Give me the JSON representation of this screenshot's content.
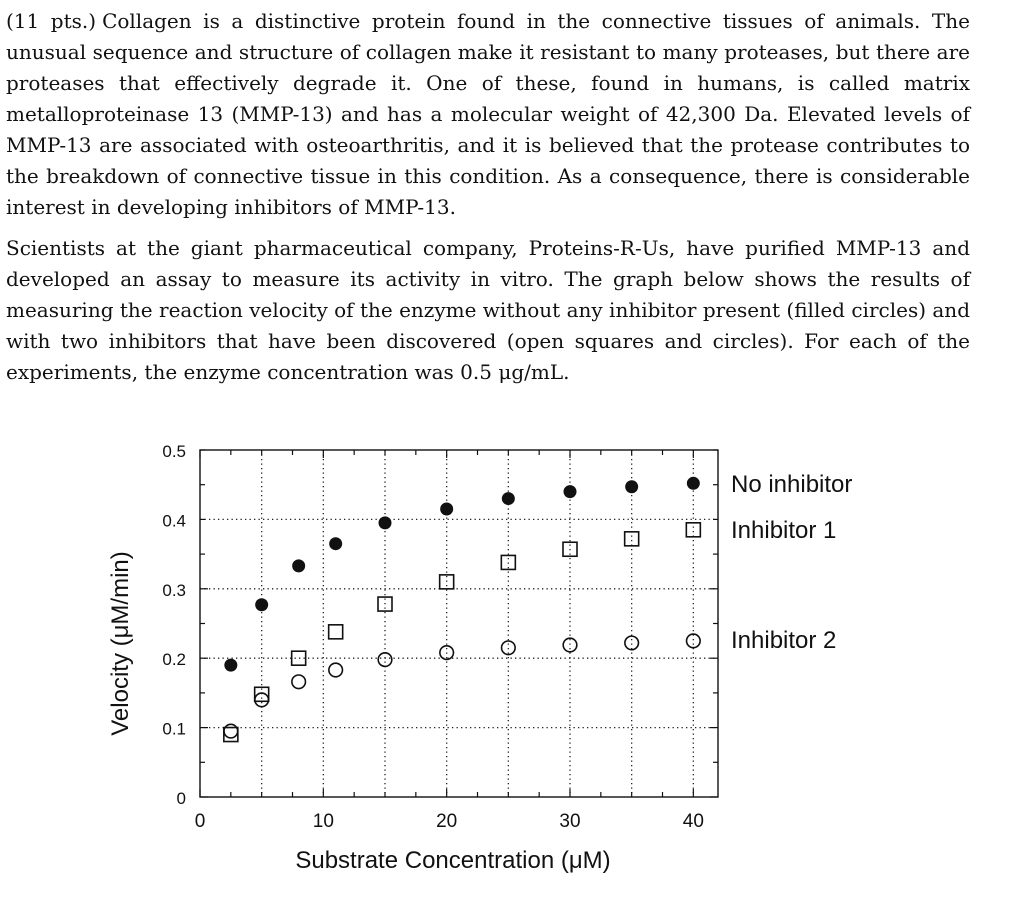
{
  "problem": {
    "points": "(11 pts.)",
    "paragraph1": "Collagen is a distinctive protein found in the connective tissues of animals. The unusual sequence and structure of collagen make it resistant to many proteases, but there are proteases that effectively degrade it. One of these, found in humans, is called matrix metalloproteinase 13 (MMP-13) and has a molecular weight of 42,300 Da. Elevated levels of MMP-13 are associated with osteoarthritis, and it is believed that the protease contributes to the breakdown of connective tissue in this condition. As a consequence, there is considerable interest in developing inhibitors of MMP-13.",
    "paragraph2": "Scientists at the giant pharmaceutical company, Proteins-R-Us, have purified MMP-13 and developed an assay to measure its activity in vitro. The graph below shows the results of measuring the reaction velocity of the enzyme without any inhibitor present (filled circles) and with two inhibitors that have been discovered (open squares and circles). For each of the experiments, the enzyme concentration was 0.5 μg/mL."
  },
  "chart_data": {
    "type": "scatter",
    "xlabel": "Substrate Concentration (μM)",
    "ylabel": "Velocity (μM/min)",
    "xlim": [
      0,
      42
    ],
    "ylim": [
      0,
      0.5
    ],
    "xticks": [
      0,
      10,
      20,
      30,
      40
    ],
    "yticks": [
      0,
      0.1,
      0.2,
      0.3,
      0.4,
      0.5
    ],
    "grid": "dotted",
    "legend": "labels at right of final points",
    "series": [
      {
        "name": "No inhibitor",
        "marker": "filled-circle",
        "x": [
          2.5,
          5,
          8,
          11,
          15,
          20,
          25,
          30,
          35,
          40
        ],
        "y": [
          0.19,
          0.277,
          0.333,
          0.365,
          0.395,
          0.415,
          0.43,
          0.44,
          0.447,
          0.452
        ]
      },
      {
        "name": "Inhibitor 1",
        "marker": "open-square",
        "x": [
          2.5,
          5,
          8,
          11,
          15,
          20,
          25,
          30,
          35,
          40
        ],
        "y": [
          0.09,
          0.148,
          0.2,
          0.238,
          0.278,
          0.31,
          0.338,
          0.357,
          0.372,
          0.385
        ]
      },
      {
        "name": "Inhibitor 2",
        "marker": "open-circle",
        "x": [
          2.5,
          5,
          8,
          11,
          15,
          20,
          25,
          30,
          35,
          40
        ],
        "y": [
          0.095,
          0.14,
          0.166,
          0.183,
          0.198,
          0.208,
          0.215,
          0.219,
          0.222,
          0.225
        ]
      }
    ]
  }
}
